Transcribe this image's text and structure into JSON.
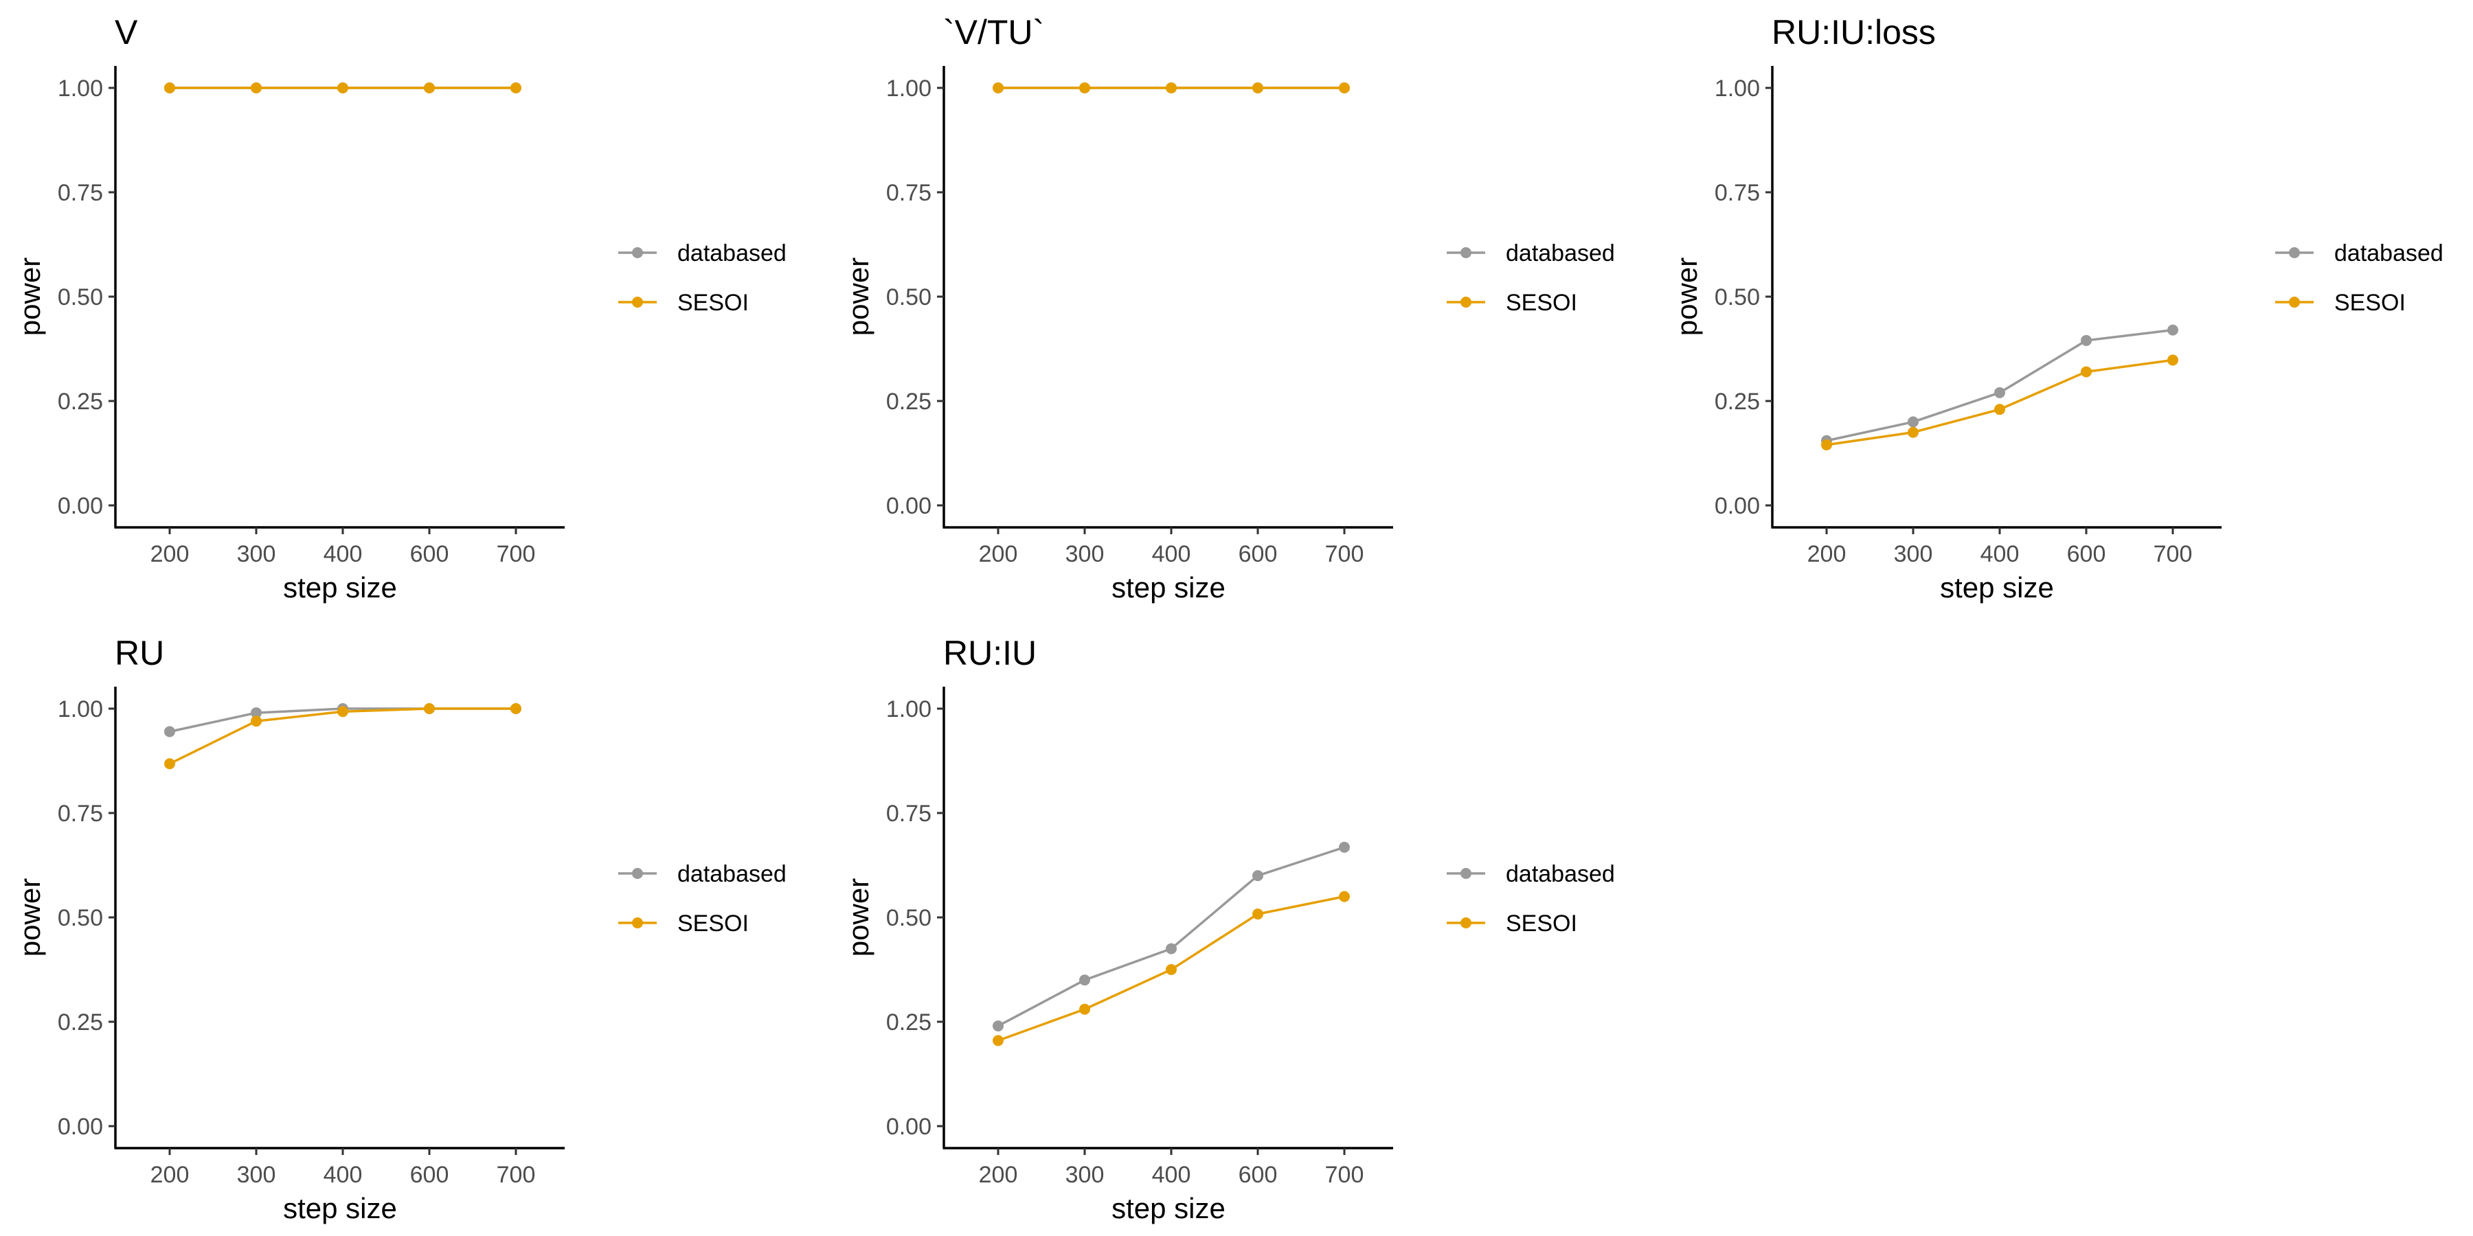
{
  "colors": {
    "databased": "#999999",
    "SESOI": "#E69F00",
    "axis": "#000000",
    "tick_text": "#4d4d4d"
  },
  "chart_data": [
    {
      "type": "line",
      "title": "V",
      "xlabel": "step size",
      "ylabel": "power",
      "categories": [
        "200",
        "300",
        "400",
        "600",
        "700"
      ],
      "ylim": [
        0,
        1
      ],
      "yticks": [
        "0.00",
        "0.25",
        "0.50",
        "0.75",
        "1.00"
      ],
      "grid": false,
      "legend_position": "right",
      "series": [
        {
          "name": "databased",
          "values": [
            1.0,
            1.0,
            1.0,
            1.0,
            1.0
          ]
        },
        {
          "name": "SESOI",
          "values": [
            1.0,
            1.0,
            1.0,
            1.0,
            1.0
          ]
        }
      ]
    },
    {
      "type": "line",
      "title": "`V/TU`",
      "xlabel": "step size",
      "ylabel": "power",
      "categories": [
        "200",
        "300",
        "400",
        "600",
        "700"
      ],
      "ylim": [
        0,
        1
      ],
      "yticks": [
        "0.00",
        "0.25",
        "0.50",
        "0.75",
        "1.00"
      ],
      "grid": false,
      "legend_position": "right",
      "series": [
        {
          "name": "databased",
          "values": [
            1.0,
            1.0,
            1.0,
            1.0,
            1.0
          ]
        },
        {
          "name": "SESOI",
          "values": [
            1.0,
            1.0,
            1.0,
            1.0,
            1.0
          ]
        }
      ]
    },
    {
      "type": "line",
      "title": "RU:IU:loss",
      "xlabel": "step size",
      "ylabel": "power",
      "categories": [
        "200",
        "300",
        "400",
        "600",
        "700"
      ],
      "ylim": [
        0,
        1
      ],
      "yticks": [
        "0.00",
        "0.25",
        "0.50",
        "0.75",
        "1.00"
      ],
      "grid": false,
      "legend_position": "right",
      "series": [
        {
          "name": "databased",
          "values": [
            0.155,
            0.2,
            0.27,
            0.395,
            0.42
          ]
        },
        {
          "name": "SESOI",
          "values": [
            0.145,
            0.175,
            0.23,
            0.32,
            0.348
          ]
        }
      ]
    },
    {
      "type": "line",
      "title": "RU",
      "xlabel": "step size",
      "ylabel": "power",
      "categories": [
        "200",
        "300",
        "400",
        "600",
        "700"
      ],
      "ylim": [
        0,
        1
      ],
      "yticks": [
        "0.00",
        "0.25",
        "0.50",
        "0.75",
        "1.00"
      ],
      "grid": false,
      "legend_position": "right",
      "series": [
        {
          "name": "databased",
          "values": [
            0.945,
            0.99,
            1.0,
            1.0,
            1.0
          ]
        },
        {
          "name": "SESOI",
          "values": [
            0.868,
            0.97,
            0.993,
            1.0,
            1.0
          ]
        }
      ]
    },
    {
      "type": "line",
      "title": "RU:IU",
      "xlabel": "step size",
      "ylabel": "power",
      "categories": [
        "200",
        "300",
        "400",
        "600",
        "700"
      ],
      "ylim": [
        0,
        1
      ],
      "yticks": [
        "0.00",
        "0.25",
        "0.50",
        "0.75",
        "1.00"
      ],
      "grid": false,
      "legend_position": "right",
      "series": [
        {
          "name": "databased",
          "values": [
            0.24,
            0.35,
            0.425,
            0.6,
            0.668
          ]
        },
        {
          "name": "SESOI",
          "values": [
            0.205,
            0.28,
            0.375,
            0.508,
            0.55
          ]
        }
      ]
    }
  ]
}
